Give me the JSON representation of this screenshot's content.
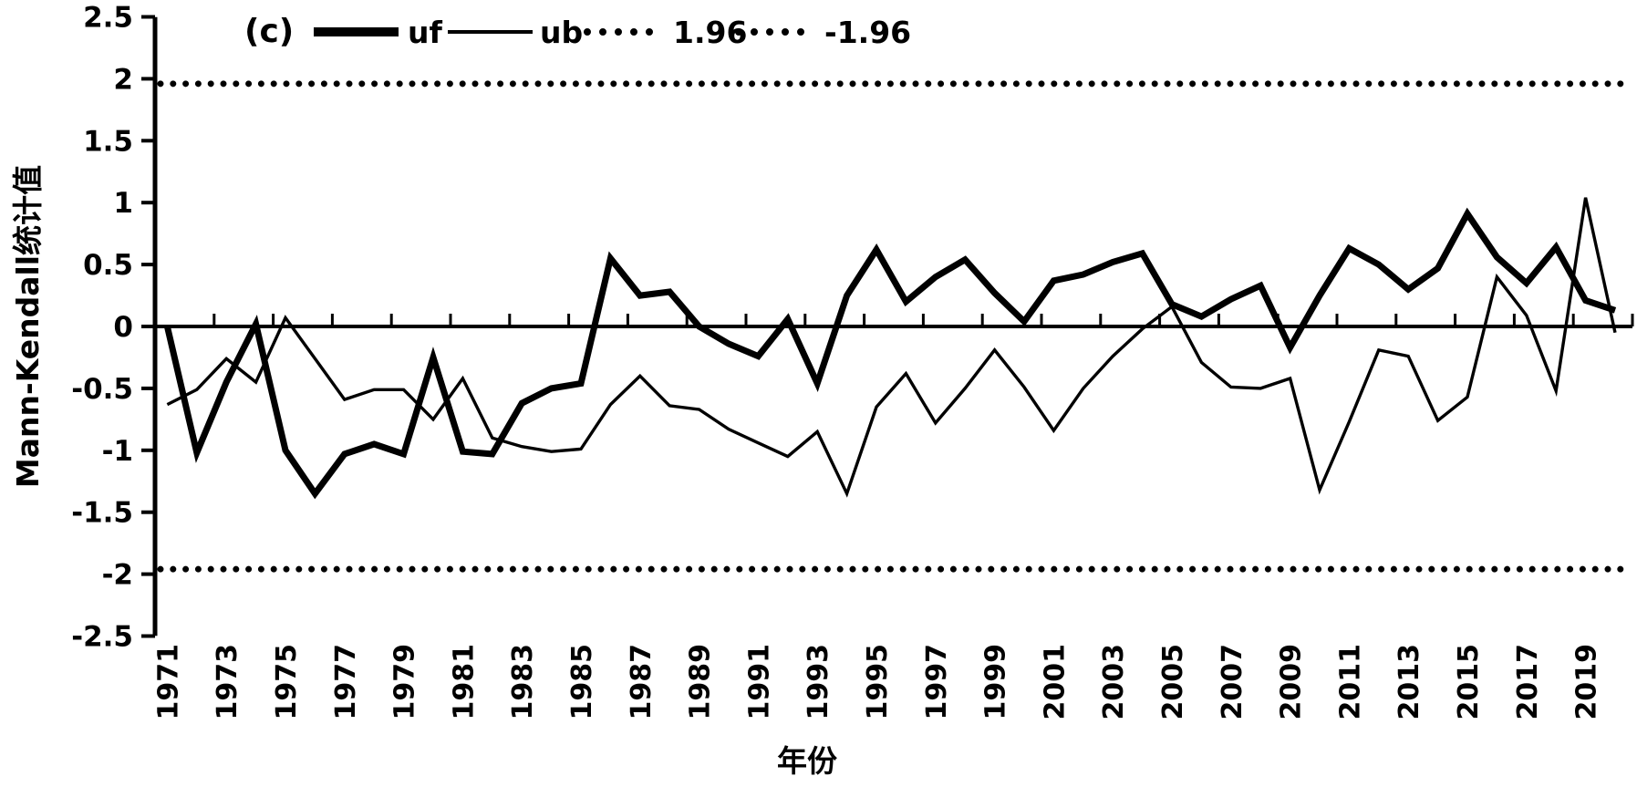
{
  "figure_label": "(c)",
  "axes": {
    "y_title": "Mann-Kendall统计值",
    "x_title": "年份",
    "y_tick_labels": [
      "2.5",
      "2",
      "1.5",
      "1",
      "0.5",
      "0",
      "-0.5",
      "-1",
      "-1.5",
      "-2",
      "-2.5"
    ],
    "x_tick_labels": [
      "1971",
      "1973",
      "1975",
      "1977",
      "1979",
      "1981",
      "1983",
      "1985",
      "1987",
      "1989",
      "1991",
      "1993",
      "1995",
      "1997",
      "1999",
      "2001",
      "2003",
      "2005",
      "2007",
      "2009",
      "2011",
      "2013",
      "2015",
      "2017",
      "2019"
    ]
  },
  "legend": [
    {
      "label": "uf",
      "style": "thick-solid-line"
    },
    {
      "label": "ub",
      "style": "thin-solid-line"
    },
    {
      "label": "1.96",
      "style": "dotted-line"
    },
    {
      "label": "-1.96",
      "style": "dotted-line"
    }
  ],
  "colors": {
    "line": "#000000",
    "background": "#ffffff"
  },
  "chart_data": {
    "type": "line",
    "title": "(c)",
    "xlabel": "年份",
    "ylabel": "Mann-Kendall统计值",
    "ylim": [
      -2.5,
      2.5
    ],
    "y_tick_step": 0.5,
    "x_tick_step": 2,
    "grid": false,
    "legend_position": "top",
    "x": [
      1971,
      1972,
      1973,
      1974,
      1975,
      1976,
      1977,
      1978,
      1979,
      1980,
      1981,
      1982,
      1983,
      1984,
      1985,
      1986,
      1987,
      1988,
      1989,
      1990,
      1991,
      1992,
      1993,
      1994,
      1995,
      1996,
      1997,
      1998,
      1999,
      2000,
      2001,
      2002,
      2003,
      2004,
      2005,
      2006,
      2007,
      2008,
      2009,
      2010,
      2011,
      2012,
      2013,
      2014,
      2015,
      2016,
      2017,
      2018,
      2019,
      2020
    ],
    "series": [
      {
        "name": "uf",
        "values": [
          0.0,
          -1.02,
          -0.45,
          0.02,
          -1.0,
          -1.35,
          -1.03,
          -0.95,
          -1.03,
          -0.25,
          -1.01,
          -1.03,
          -0.62,
          -0.5,
          -0.46,
          0.55,
          0.25,
          0.28,
          0.0,
          -0.14,
          -0.24,
          0.06,
          -0.46,
          0.25,
          0.62,
          0.2,
          0.4,
          0.54,
          0.27,
          0.04,
          0.37,
          0.42,
          0.52,
          0.59,
          0.18,
          0.08,
          0.22,
          0.33,
          -0.17,
          0.25,
          0.63,
          0.5,
          0.3,
          0.47,
          0.91,
          0.56,
          0.35,
          0.64,
          0.21,
          0.13
        ]
      },
      {
        "name": "ub",
        "values": [
          -0.63,
          -0.51,
          -0.26,
          -0.45,
          0.07,
          -0.26,
          -0.59,
          -0.51,
          -0.51,
          -0.75,
          -0.42,
          -0.9,
          -0.97,
          -1.01,
          -0.99,
          -0.63,
          -0.4,
          -0.64,
          -0.67,
          -0.83,
          -0.94,
          -1.05,
          -0.85,
          -1.35,
          -0.65,
          -0.38,
          -0.78,
          -0.5,
          -0.19,
          -0.49,
          -0.84,
          -0.5,
          -0.24,
          -0.02,
          0.16,
          -0.29,
          -0.49,
          -0.5,
          -0.42,
          -1.32,
          -0.77,
          -0.19,
          -0.24,
          -0.76,
          -0.57,
          0.4,
          0.09,
          -0.52,
          1.04,
          -0.05
        ]
      }
    ],
    "reference_lines": [
      {
        "value": 1.96,
        "label": "1.96",
        "style": "dotted"
      },
      {
        "value": -1.96,
        "label": "-1.96",
        "style": "dotted"
      }
    ]
  }
}
